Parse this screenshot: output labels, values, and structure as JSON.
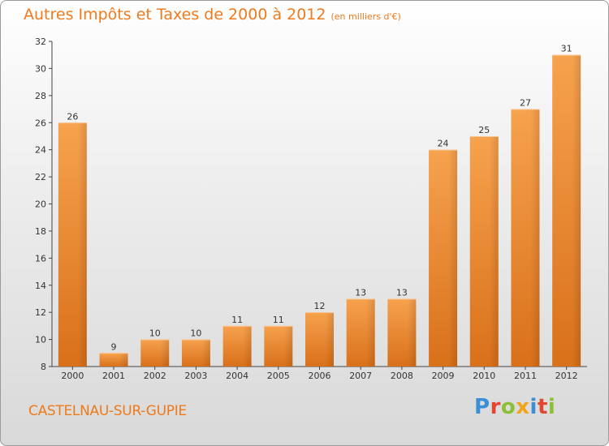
{
  "title": "Autres Impôts et Taxes de 2000 à 2012",
  "subtitle": "(en milliers d'€)",
  "commune": "CASTELNAU-SUR-GUPIE",
  "logo": {
    "letters": [
      "P",
      "r",
      "o",
      "x",
      "i",
      "t",
      "i"
    ],
    "colors": [
      "#3a8fd6",
      "#e2462e",
      "#8bc034",
      "#f2a51c",
      "#3a8fd6",
      "#e2462e",
      "#8bc034"
    ]
  },
  "colors": {
    "bar": "#f08a2c",
    "title": "#f07a1c"
  },
  "chart_data": {
    "type": "bar",
    "title": "Autres Impôts et Taxes de 2000 à 2012",
    "subtitle": "(en milliers d'€)",
    "categories": [
      "2000",
      "2001",
      "2002",
      "2003",
      "2004",
      "2005",
      "2006",
      "2007",
      "2008",
      "2009",
      "2010",
      "2011",
      "2012"
    ],
    "values": [
      26,
      9,
      10,
      10,
      11,
      11,
      12,
      13,
      13,
      24,
      25,
      27,
      31
    ],
    "ylim": [
      8,
      32
    ],
    "yticks": [
      8,
      10,
      12,
      14,
      16,
      18,
      20,
      22,
      24,
      26,
      28,
      30,
      32
    ],
    "grid": false,
    "xlabel": "",
    "ylabel": ""
  }
}
